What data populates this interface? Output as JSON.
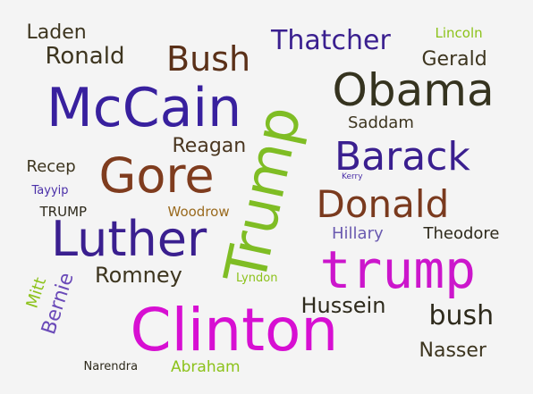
{
  "words": [
    {
      "text": "Clinton",
      "color": "#d70fd2"
    },
    {
      "text": "Trump",
      "color": "#7fbd24"
    },
    {
      "text": "trump",
      "color": "#cc16cc"
    },
    {
      "text": "McCain",
      "color": "#38209e"
    },
    {
      "text": "Gore",
      "color": "#7f3c1e"
    },
    {
      "text": "Luther",
      "color": "#3a1f8f"
    },
    {
      "text": "Obama",
      "color": "#35331f"
    },
    {
      "text": "Barack",
      "color": "#3a1f8f"
    },
    {
      "text": "Donald",
      "color": "#7a3a1e"
    },
    {
      "text": "Bush",
      "color": "#5a3018"
    },
    {
      "text": "Thatcher",
      "color": "#3a1f8f"
    },
    {
      "text": "Ronald",
      "color": "#3d351f"
    },
    {
      "text": "Laden",
      "color": "#3d351f"
    },
    {
      "text": "Gerald",
      "color": "#3d351f"
    },
    {
      "text": "Lincoln",
      "color": "#8cc21a"
    },
    {
      "text": "Reagan",
      "color": "#4a3620"
    },
    {
      "text": "Saddam",
      "color": "#3d351f"
    },
    {
      "text": "Recep",
      "color": "#3d351f"
    },
    {
      "text": "Tayyip",
      "color": "#4a2fa8"
    },
    {
      "text": "TRUMP",
      "color": "#2e2a1c"
    },
    {
      "text": "Woodrow",
      "color": "#9a6a1e"
    },
    {
      "text": "Kerry",
      "color": "#4a2fa8"
    },
    {
      "text": "Hillary",
      "color": "#6a5ab0"
    },
    {
      "text": "Theodore",
      "color": "#2e2a1c"
    },
    {
      "text": "Romney",
      "color": "#3d351f"
    },
    {
      "text": "Lyndon",
      "color": "#8cc21a"
    },
    {
      "text": "Hussein",
      "color": "#2e2a1c"
    },
    {
      "text": "bush",
      "color": "#2e2a1c"
    },
    {
      "text": "Nasser",
      "color": "#3d351f"
    },
    {
      "text": "Bernie",
      "color": "#6a4ab8"
    },
    {
      "text": "Mitt",
      "color": "#8cc21a"
    },
    {
      "text": "Narendra",
      "color": "#2e2a1c"
    },
    {
      "text": "Abraham",
      "color": "#8cc21a"
    }
  ]
}
